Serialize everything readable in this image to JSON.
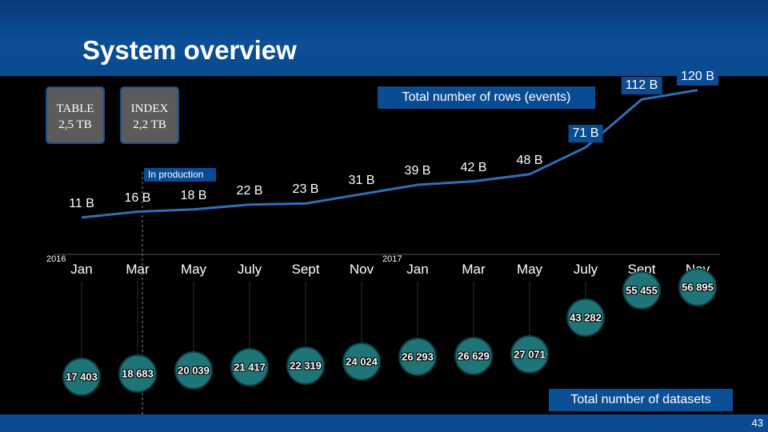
{
  "slide": {
    "title": "System overview",
    "page_number": "43"
  },
  "storage": {
    "table": {
      "name": "TABLE",
      "value": "2,5 TB"
    },
    "index": {
      "name": "INDEX",
      "value": "2,2 TB"
    }
  },
  "legend": {
    "rows_title": "Total number of rows (events)",
    "datasets_title": "Total number of datasets",
    "in_production": "In production"
  },
  "colors": {
    "header": "#0b4f97",
    "line": "#2f6fb7",
    "dataset_circle": "#1f7477",
    "storage_box": "#5b5b5b"
  },
  "chart_data": [
    {
      "type": "line",
      "title": "Total number of rows (events)",
      "categories": [
        "Jan",
        "Mar",
        "May",
        "July",
        "Sept",
        "Nov",
        "Jan",
        "Mar",
        "May",
        "July",
        "Sept",
        "Nov"
      ],
      "year_labels": [
        "2016",
        "2017"
      ],
      "values": [
        11,
        16,
        18,
        22,
        23,
        31,
        39,
        42,
        48,
        71,
        112,
        120
      ],
      "value_labels": [
        "11 B",
        "16 B",
        "18 B",
        "22 B",
        "23 B",
        "31 B",
        "39 B",
        "42 B",
        "48 B",
        "71 B",
        "112 B",
        "120 B"
      ],
      "unit": "B",
      "ylim": [
        0,
        130
      ],
      "grid": false
    },
    {
      "type": "scatter",
      "title": "Total number of datasets",
      "categories": [
        "Jan",
        "Mar",
        "May",
        "July",
        "Sept",
        "Nov",
        "Jan",
        "Mar",
        "May",
        "July",
        "Sept",
        "Nov"
      ],
      "values": [
        17403,
        18683,
        20039,
        21417,
        22319,
        24024,
        26293,
        26629,
        27071,
        43282,
        55455,
        56895
      ],
      "value_labels": [
        "17 403",
        "18 683",
        "20 039",
        "21 417",
        "22 319",
        "24 024",
        "26 293",
        "26 629",
        "27 071",
        "43 282",
        "55 455",
        "56 895"
      ],
      "ylim": [
        0,
        60000
      ]
    }
  ]
}
